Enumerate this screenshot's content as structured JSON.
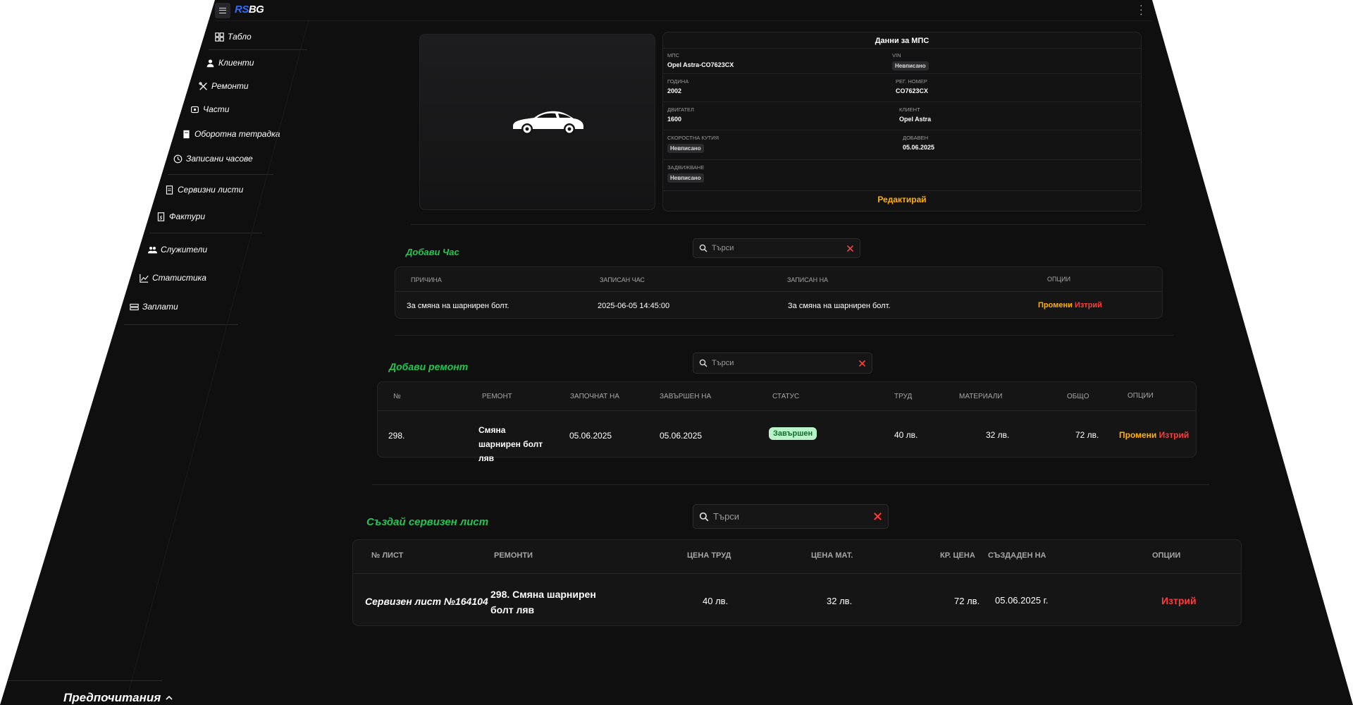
{
  "app": {
    "logo_rs": "RS",
    "logo_bg": "BG"
  },
  "sidebar": {
    "items": [
      {
        "label": "Табло",
        "icon": "dashboard-icon"
      },
      {
        "label": "Клиенти",
        "icon": "user-icon"
      },
      {
        "label": "Ремонти",
        "icon": "wrench-icon"
      },
      {
        "label": "Части",
        "icon": "parts-icon"
      },
      {
        "label": "Оборотна тетрадка",
        "icon": "notebook-icon"
      },
      {
        "label": "Записани часове",
        "icon": "clock-icon"
      },
      {
        "label": "Сервизни листи",
        "icon": "service-sheet-icon"
      },
      {
        "label": "Фактури",
        "icon": "invoice-icon"
      },
      {
        "label": "Служители",
        "icon": "employees-icon"
      },
      {
        "label": "Статистика",
        "icon": "chart-icon"
      },
      {
        "label": "Заплати",
        "icon": "salary-icon"
      }
    ],
    "preferences": "Предпочитания"
  },
  "vehicle": {
    "title": "Данни за МПС",
    "fields": {
      "mps_label": "МПС",
      "mps_value": "Opel Astra-CO7623CX",
      "vin_label": "VIN",
      "vin_value": "Невписано",
      "year_label": "Година",
      "year_value": "2002",
      "reg_label": "Рег. номер",
      "reg_value": "CO7623CX",
      "engine_label": "Двигател",
      "engine_value": "1600",
      "client_label": "Клиент",
      "client_value": "Opel Astra",
      "gearbox_label": "Скоростна кутия",
      "gearbox_value": "Невписано",
      "added_label": "Добавен",
      "added_value": "05.06.2025",
      "drive_label": "Задвижване",
      "drive_value": "Невписано"
    },
    "edit_label": "Редактирай"
  },
  "hours": {
    "add_label": "Добави Час",
    "search_placeholder": "Търси",
    "headers": [
      "Причина",
      "Записан час",
      "Записан на",
      "Опции"
    ],
    "rows": [
      {
        "reason": "За смяна на шарнирен болт.",
        "time": "2025-06-05 14:45:00",
        "for": "За смяна на шарнирен болт.",
        "edit": "Промени",
        "delete": "Изтрий"
      }
    ]
  },
  "repairs": {
    "add_label": "Добави ремонт",
    "search_placeholder": "Търси",
    "headers": [
      "№",
      "Ремонт",
      "Започнат на",
      "Завършен на",
      "Статус",
      "Труд",
      "Материали",
      "Общо",
      "Опции"
    ],
    "rows": [
      {
        "num": "298.",
        "repair": "Смяна шарнирен болт ляв",
        "started": "05.06.2025",
        "finished": "05.06.2025",
        "status": "Завършен",
        "labor": "40 лв.",
        "materials": "32 лв.",
        "total": "72 лв.",
        "edit": "Промени",
        "delete": "Изтрий"
      }
    ]
  },
  "sheets": {
    "add_label": "Създай сервизен лист",
    "search_placeholder": "Търси",
    "headers": [
      "№ Лист",
      "Ремонти",
      "Цена труд",
      "Цена мат.",
      "Кр. цена",
      "Създаден на",
      "Опции"
    ],
    "rows": [
      {
        "sheet": "Сервизен лист №164104",
        "repairs": "298. Смяна шарнирен болт ляв",
        "labor": "40 лв.",
        "materials": "32 лв.",
        "final": "72 лв.",
        "created": "05.06.2025 г.",
        "delete": "Изтрий"
      }
    ]
  },
  "colors": {
    "accent_green": "#23c552",
    "edit_orange": "#ffb000",
    "delete_red": "#ff3b3b",
    "brand_blue": "#2f6bff"
  }
}
